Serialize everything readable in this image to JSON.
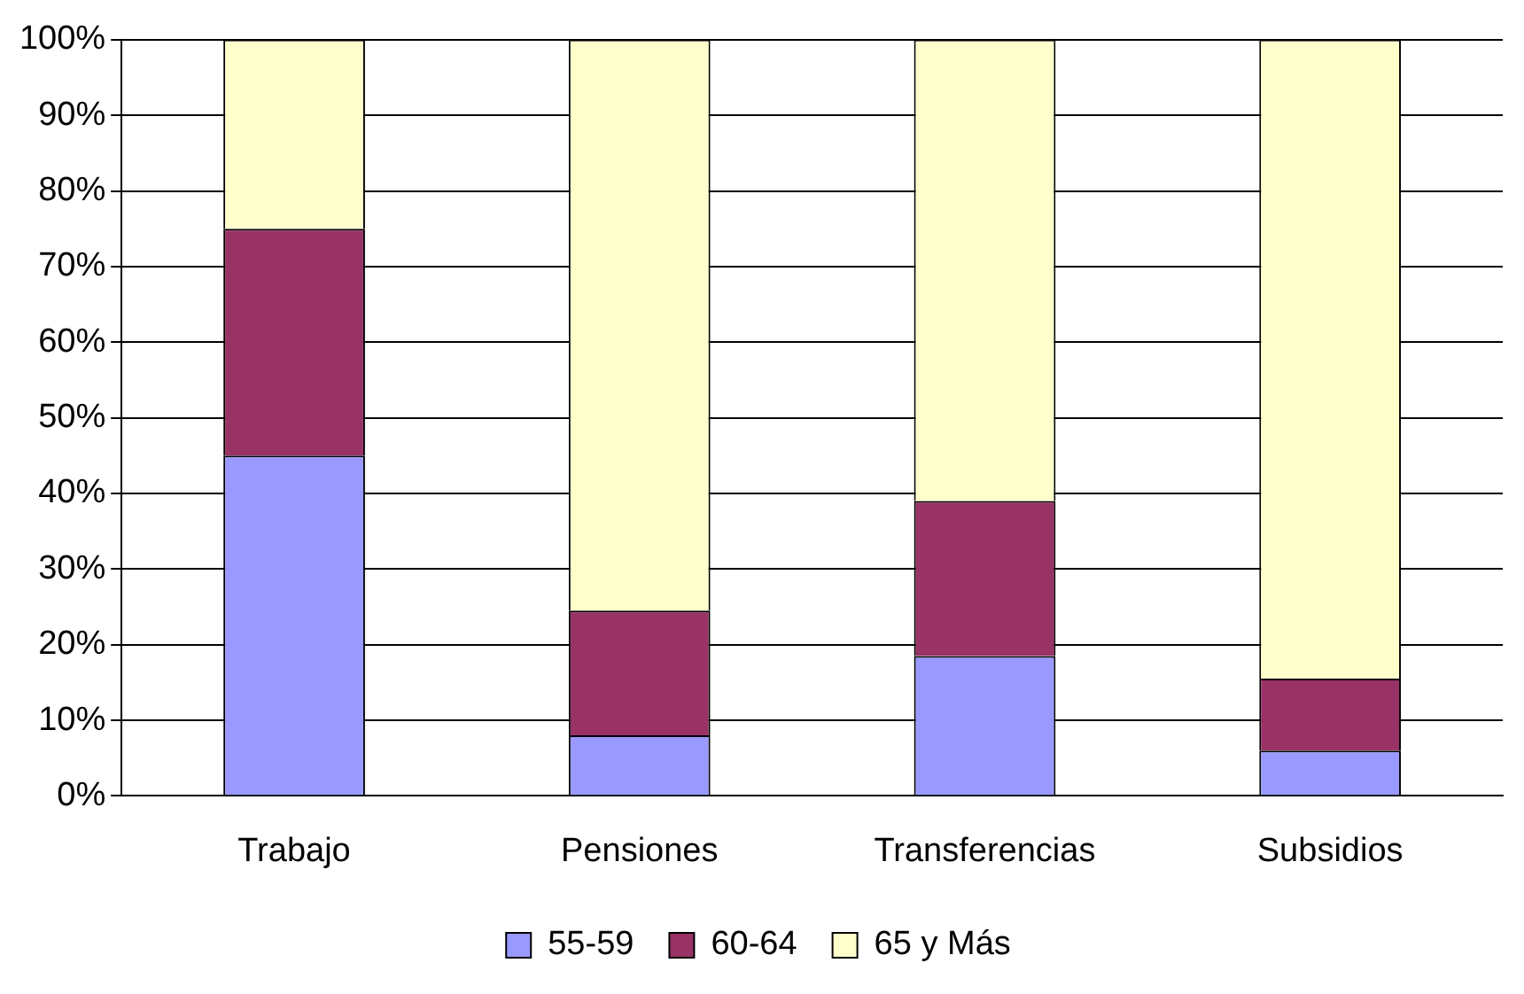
{
  "chart_data": {
    "type": "bar",
    "stacked": true,
    "categories": [
      "Trabajo",
      "Pensiones",
      "Transferencias",
      "Subsidios"
    ],
    "series": [
      {
        "name": "55-59",
        "color": "#9999ff",
        "values": [
          45,
          8,
          18.5,
          6
        ]
      },
      {
        "name": "60-64",
        "color": "#993366",
        "values": [
          30,
          16.5,
          20.5,
          9.5
        ]
      },
      {
        "name": "65 y Más",
        "color": "#ffffcc",
        "values": [
          25,
          75.5,
          61,
          84.5
        ]
      }
    ],
    "ylim": [
      0,
      100
    ],
    "yticks": [
      {
        "value": 0,
        "label": "0%"
      },
      {
        "value": 10,
        "label": "10%"
      },
      {
        "value": 20,
        "label": "20%"
      },
      {
        "value": 30,
        "label": "30%"
      },
      {
        "value": 40,
        "label": "40%"
      },
      {
        "value": 50,
        "label": "50%"
      },
      {
        "value": 60,
        "label": "60%"
      },
      {
        "value": 70,
        "label": "70%"
      },
      {
        "value": 80,
        "label": "80%"
      },
      {
        "value": 90,
        "label": "90%"
      },
      {
        "value": 100,
        "label": "100%"
      }
    ],
    "grid": "y",
    "legend": "bottom"
  }
}
